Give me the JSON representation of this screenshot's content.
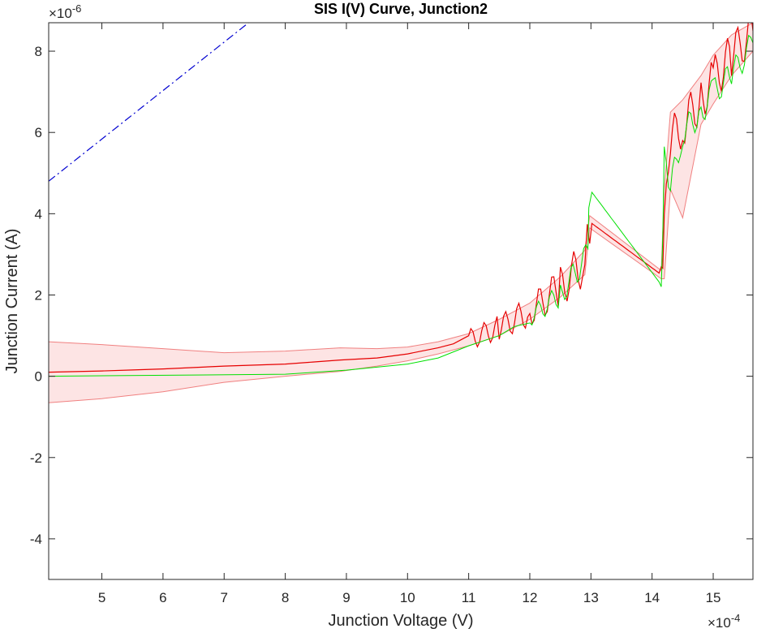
{
  "chart_data": {
    "type": "line",
    "title": "SIS I(V) Curve, Junction2",
    "xlabel": "Junction Voltage (V)",
    "ylabel": "Junction Current (A)",
    "x_multiplier": "×10",
    "x_exponent": "-4",
    "y_multiplier": "×10",
    "y_exponent": "-6",
    "xlim": [
      4.13,
      15.65
    ],
    "ylim": [
      -5,
      8.7
    ],
    "x_ticks": [
      5,
      6,
      7,
      8,
      9,
      10,
      11,
      12,
      13,
      14,
      15
    ],
    "x_tick_labels": [
      "5",
      "6",
      "7",
      "8",
      "9",
      "10",
      "11",
      "12",
      "13",
      "14",
      "15"
    ],
    "y_ticks": [
      -4,
      -2,
      0,
      2,
      4,
      6,
      8
    ],
    "y_tick_labels": [
      "-4",
      "-2",
      "0",
      "2",
      "4",
      "6",
      "8"
    ],
    "grid": false,
    "colors": {
      "mean": "#e60000",
      "band_fill": "#fde4e4",
      "band_edge": "#f08080",
      "model": "#00e000",
      "linear": "#0000d0"
    },
    "series": [
      {
        "style": "mean-with-shaded-band",
        "x": [
          4.13,
          5.0,
          6.0,
          7.0,
          8.0,
          8.9,
          9.5,
          10.0,
          10.5,
          11.0,
          11.5,
          12.0,
          12.5,
          12.9,
          12.98,
          14.15,
          14.2,
          14.3,
          14.5,
          14.8,
          15.0,
          15.3,
          15.65
        ],
        "y": [
          0.1,
          0.13,
          0.18,
          0.25,
          0.3,
          0.4,
          0.45,
          0.55,
          0.7,
          0.9,
          1.2,
          1.6,
          2.2,
          2.8,
          3.8,
          2.5,
          3.5,
          5.8,
          6.2,
          6.8,
          7.3,
          7.9,
          8.5
        ],
        "band_upper": [
          0.85,
          0.78,
          0.68,
          0.58,
          0.62,
          0.7,
          0.68,
          0.72,
          0.85,
          1.05,
          1.4,
          1.8,
          2.45,
          3.1,
          3.95,
          2.6,
          4.6,
          6.5,
          6.8,
          7.4,
          7.9,
          8.4,
          8.7
        ],
        "band_lower": [
          -0.65,
          -0.55,
          -0.38,
          -0.15,
          0.0,
          0.12,
          0.25,
          0.38,
          0.55,
          0.75,
          1.0,
          1.4,
          1.95,
          2.5,
          3.65,
          2.4,
          2.4,
          4.6,
          3.9,
          6.2,
          6.7,
          7.4,
          8.0
        ],
        "jitter_from": 10.6
      },
      {
        "style": "line",
        "x": [
          4.13,
          8.0,
          9.0,
          10.0,
          10.5,
          11.0,
          11.5,
          12.0,
          12.5,
          12.95,
          12.98,
          14.15,
          14.2,
          14.3,
          14.5,
          14.8,
          15.0,
          15.3,
          15.65
        ],
        "y": [
          0.0,
          0.05,
          0.15,
          0.3,
          0.45,
          0.75,
          1.0,
          1.45,
          2.0,
          3.0,
          4.6,
          2.25,
          5.3,
          4.6,
          6.0,
          6.5,
          7.0,
          7.4,
          8.2
        ],
        "jitter_from": 11.8
      },
      {
        "style": "dash-dot",
        "x": [
          4.13,
          7.4
        ],
        "y": [
          4.8,
          8.7
        ]
      }
    ]
  }
}
